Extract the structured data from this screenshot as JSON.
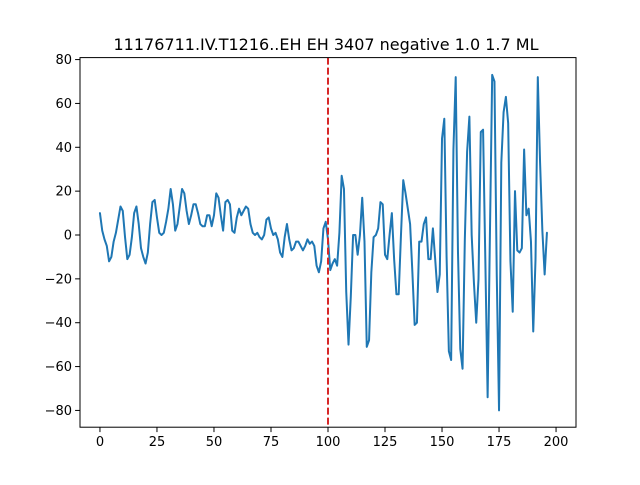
{
  "chart_data": {
    "type": "line",
    "title": "11176711.IV.T1216..EH EH 3407 negative 1.0 1.7 ML",
    "xlabel": "",
    "ylabel": "",
    "xlim": [
      -8.75,
      208.75
    ],
    "ylim": [
      -87.65,
      80.9
    ],
    "x_ticks": [
      0,
      25,
      50,
      75,
      100,
      125,
      150,
      175,
      200
    ],
    "y_ticks": [
      -80,
      -60,
      -40,
      -20,
      0,
      20,
      40,
      60,
      80
    ],
    "grid": false,
    "legend": "none",
    "series": [
      {
        "color": "#1f77b4",
        "x_start": 0,
        "x_step": 1,
        "values": [
          10,
          2,
          -2,
          -5,
          -12,
          -10,
          -3,
          1,
          7,
          13,
          11,
          -1,
          -11,
          -9,
          -1,
          10,
          13,
          5,
          -6,
          -10,
          -13,
          -8,
          5,
          15,
          16,
          8,
          1,
          0,
          1,
          6,
          12,
          21,
          14,
          2,
          5,
          13,
          21,
          19,
          11,
          5,
          9,
          14,
          14,
          10,
          5,
          4,
          4,
          9,
          9,
          4,
          9,
          19,
          17,
          9,
          2,
          15,
          16,
          14,
          2,
          1,
          8,
          12,
          9,
          11,
          13,
          12,
          5,
          1,
          0,
          1,
          -1,
          -2,
          0,
          7,
          8,
          3,
          0,
          1,
          -2,
          -8,
          -10,
          -1,
          5,
          -2,
          -7,
          -6,
          -3,
          -3,
          -5,
          -7,
          -5,
          -2,
          -4,
          -3,
          -5,
          -14,
          -17,
          -12,
          3,
          6,
          -2,
          -16,
          -13,
          -11,
          -14,
          1,
          27,
          21,
          -26,
          -50,
          -28,
          0,
          0,
          -9,
          0,
          17,
          -3,
          -51,
          -48,
          -17,
          -1,
          0,
          3,
          15,
          14,
          -9,
          -11,
          0,
          10,
          -11,
          -27,
          -27,
          0,
          25,
          19,
          12,
          5,
          -17,
          -41,
          -40,
          -3,
          -3,
          5,
          8,
          -11,
          -11,
          3,
          -11,
          -26,
          -18,
          44,
          53,
          -10,
          -53,
          -57,
          39,
          72,
          -8,
          -52,
          -61,
          -2,
          38,
          54,
          0,
          -22,
          -40,
          -20,
          47,
          48,
          -12,
          -74,
          0,
          73,
          70,
          -18,
          -80,
          33,
          56,
          63,
          51,
          -12,
          -35,
          20,
          -7,
          -8,
          -6,
          39,
          9,
          12,
          -3,
          -44,
          -11,
          72,
          33,
          2,
          -18,
          1
        ]
      }
    ],
    "annotations": [
      {
        "kind": "vertical-line",
        "x": 100,
        "style": "dashed",
        "color": "#d62728"
      }
    ]
  }
}
